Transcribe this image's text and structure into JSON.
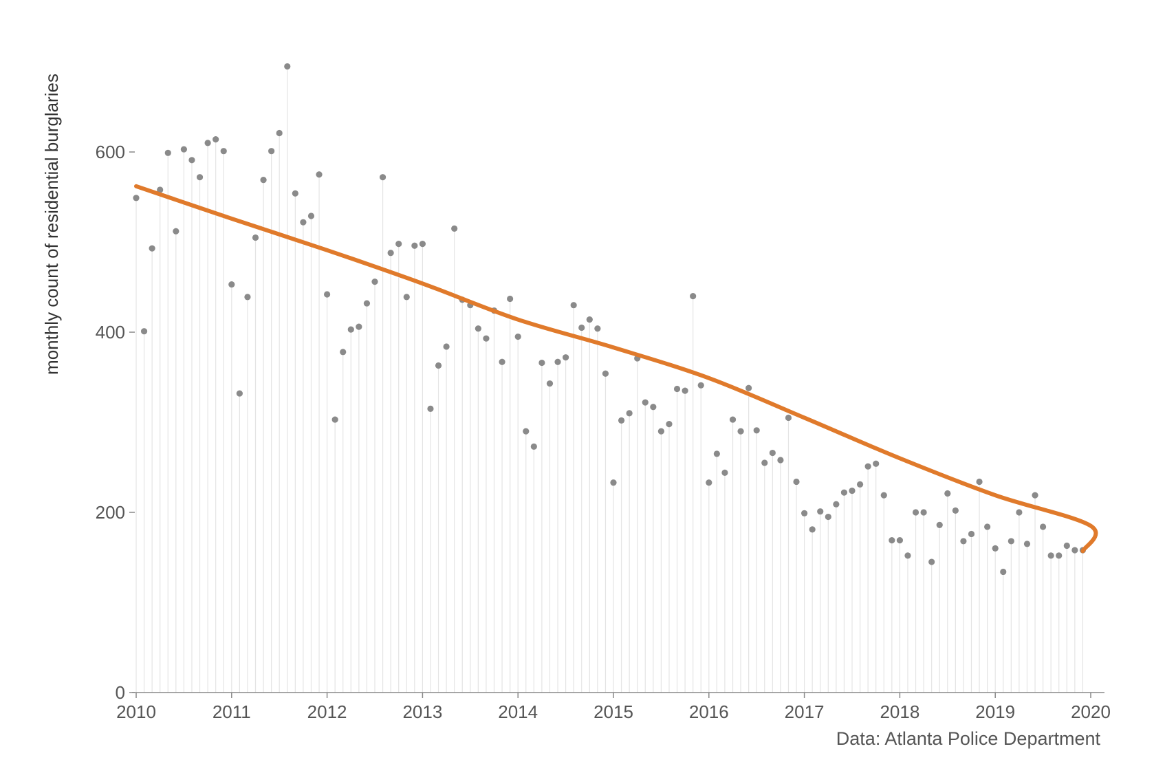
{
  "chart_data": {
    "type": "scatter",
    "ylabel": "monthly count of residential burglaries",
    "xlabel": "",
    "source": "Data: Atlanta Police Department",
    "x_ticks": [
      "2010",
      "2011",
      "2012",
      "2013",
      "2014",
      "2015",
      "2016",
      "2017",
      "2018",
      "2019",
      "2020"
    ],
    "y_ticks": [
      "0",
      "200",
      "400",
      "600"
    ],
    "xlim": [
      "2010-01",
      "2020-01"
    ],
    "ylim": [
      0,
      700
    ],
    "grid": false,
    "x": [
      "2010-01",
      "2010-02",
      "2010-03",
      "2010-04",
      "2010-05",
      "2010-06",
      "2010-07",
      "2010-08",
      "2010-09",
      "2010-10",
      "2010-11",
      "2010-12",
      "2011-01",
      "2011-02",
      "2011-03",
      "2011-04",
      "2011-05",
      "2011-06",
      "2011-07",
      "2011-08",
      "2011-09",
      "2011-10",
      "2011-11",
      "2011-12",
      "2012-01",
      "2012-02",
      "2012-03",
      "2012-04",
      "2012-05",
      "2012-06",
      "2012-07",
      "2012-08",
      "2012-09",
      "2012-10",
      "2012-11",
      "2012-12",
      "2013-01",
      "2013-02",
      "2013-03",
      "2013-04",
      "2013-05",
      "2013-06",
      "2013-07",
      "2013-08",
      "2013-09",
      "2013-10",
      "2013-11",
      "2013-12",
      "2014-01",
      "2014-02",
      "2014-03",
      "2014-04",
      "2014-05",
      "2014-06",
      "2014-07",
      "2014-08",
      "2014-09",
      "2014-10",
      "2014-11",
      "2014-12",
      "2015-01",
      "2015-02",
      "2015-03",
      "2015-04",
      "2015-05",
      "2015-06",
      "2015-07",
      "2015-08",
      "2015-09",
      "2015-10",
      "2015-11",
      "2015-12",
      "2016-01",
      "2016-02",
      "2016-03",
      "2016-04",
      "2016-05",
      "2016-06",
      "2016-07",
      "2016-08",
      "2016-09",
      "2016-10",
      "2016-11",
      "2016-12",
      "2017-01",
      "2017-02",
      "2017-03",
      "2017-04",
      "2017-05",
      "2017-06",
      "2017-07",
      "2017-08",
      "2017-09",
      "2017-10",
      "2017-11",
      "2017-12",
      "2018-01",
      "2018-02",
      "2018-03",
      "2018-04",
      "2018-05",
      "2018-06",
      "2018-07",
      "2018-08",
      "2018-09",
      "2018-10",
      "2018-11",
      "2018-12",
      "2019-01",
      "2019-02",
      "2019-03",
      "2019-04",
      "2019-05",
      "2019-06",
      "2019-07",
      "2019-08",
      "2019-09",
      "2019-10",
      "2019-11",
      "2019-12"
    ],
    "series": [
      {
        "values": [
          549,
          401,
          493,
          558,
          599,
          512,
          603,
          591,
          572,
          610,
          614,
          601,
          453,
          332,
          439,
          505,
          569,
          601,
          621,
          695,
          554,
          522,
          529,
          575,
          442,
          303,
          378,
          403,
          406,
          432,
          456,
          572,
          488,
          498,
          439,
          496,
          498,
          315,
          363,
          384,
          515,
          436,
          430,
          404,
          393,
          424,
          367,
          437,
          395,
          290,
          273,
          366,
          343,
          367,
          372,
          430,
          405,
          414,
          404,
          354,
          233,
          302,
          310,
          371,
          322,
          317,
          290,
          298,
          337,
          335,
          440,
          341,
          233,
          265,
          244,
          303,
          290,
          338,
          291,
          255,
          266,
          258,
          305,
          234,
          199,
          181,
          201,
          195,
          209,
          222,
          224,
          231,
          251,
          254,
          219,
          169,
          169,
          152,
          200,
          200,
          145,
          186,
          221,
          202,
          168,
          176,
          234,
          184,
          160,
          134,
          168,
          200,
          165,
          219,
          184,
          152,
          152,
          163,
          158,
          158
        ]
      },
      {
        "trend": [
          562,
          526,
          491,
          454,
          414,
          383,
          349,
          305,
          260,
          219,
          185,
          157
        ]
      }
    ],
    "colors": {
      "points": "#8a8a8a",
      "stems": "#e4e4e4",
      "trend": "#e07a2b",
      "axis": "#888888"
    }
  }
}
